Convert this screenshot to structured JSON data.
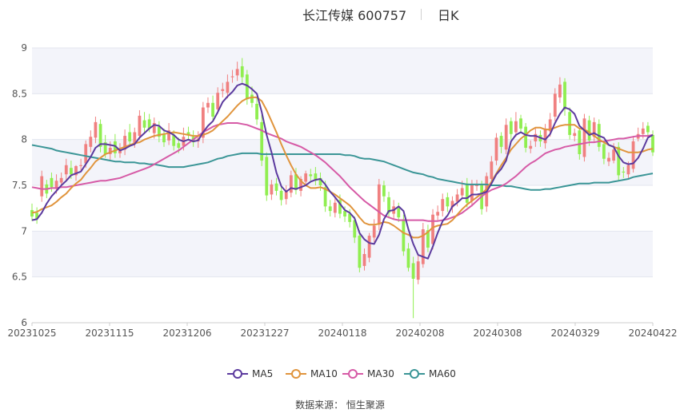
{
  "header": {
    "title": "长江传媒 600757",
    "period": "日K"
  },
  "source": "数据来源： 恒生聚源",
  "chart_data": {
    "type": "candlestick",
    "ylim": [
      6,
      9
    ],
    "yticks": [
      "9",
      "8.5",
      "8",
      "7.5",
      "7",
      "6.5",
      "6"
    ],
    "xticks": [
      "20231025",
      "20231115",
      "20231206",
      "20231227",
      "20240118",
      "20240208",
      "20240308",
      "20240329",
      "20240422"
    ],
    "up_color": "#f08080",
    "down_color": "#90ee50",
    "legend": [
      {
        "name": "MA5",
        "color": "#5b3a9e"
      },
      {
        "name": "MA10",
        "color": "#e0943c"
      },
      {
        "name": "MA30",
        "color": "#d65aa6"
      },
      {
        "name": "MA60",
        "color": "#3a9596"
      }
    ],
    "close": [
      7.16,
      7.13,
      7.6,
      7.41,
      7.48,
      7.55,
      7.58,
      7.72,
      7.62,
      7.71,
      7.72,
      7.95,
      8.03,
      8.19,
      7.92,
      7.84,
      7.91,
      7.85,
      7.88,
      8.04,
      7.98,
      8.08,
      8.26,
      8.13,
      8.12,
      8.18,
      8.03,
      7.97,
      8.1,
      7.93,
      7.91,
      8.03,
      8.05,
      7.97,
      8.01,
      8.35,
      8.4,
      8.25,
      8.51,
      8.55,
      8.63,
      8.69,
      8.77,
      8.68,
      8.44,
      8.4,
      8.22,
      7.77,
      7.39,
      7.51,
      7.44,
      7.34,
      7.44,
      7.61,
      7.45,
      7.57,
      7.63,
      7.6,
      7.55,
      7.5,
      7.27,
      7.22,
      7.31,
      7.19,
      7.16,
      7.1,
      6.93,
      6.6,
      6.75,
      6.95,
      7.06,
      7.51,
      7.38,
      7.2,
      7.27,
      7.15,
      6.78,
      6.6,
      6.48,
      6.67,
      7.02,
      6.82,
      7.18,
      7.21,
      7.35,
      7.27,
      7.33,
      7.4,
      7.47,
      7.31,
      7.51,
      7.5,
      7.24,
      7.6,
      7.76,
      8.02,
      7.92,
      8.16,
      8.06,
      8.2,
      8.12,
      7.91,
      7.93,
      8.06,
      7.98,
      8.12,
      8.22,
      8.5,
      8.6,
      8.33,
      8.05,
      8.07,
      7.84,
      8.23,
      7.99,
      8.19,
      7.92,
      7.79,
      7.8,
      7.89,
      7.61,
      7.64,
      7.72,
      7.98,
      8.06,
      8.12,
      8.08,
      7.86
    ],
    "open": [
      7.23,
      7.2,
      7.38,
      7.51,
      7.58,
      7.46,
      7.53,
      7.62,
      7.69,
      7.61,
      7.71,
      7.74,
      7.92,
      8.02,
      8.17,
      7.97,
      7.84,
      7.98,
      7.85,
      7.89,
      8.08,
      7.95,
      8.04,
      8.21,
      8.22,
      8.07,
      8.14,
      8.06,
      7.99,
      8.05,
      7.96,
      7.93,
      8.08,
      8.03,
      7.98,
      8.02,
      8.35,
      8.4,
      8.33,
      8.53,
      8.51,
      8.68,
      8.7,
      8.8,
      8.71,
      8.49,
      8.39,
      8.19,
      7.81,
      7.4,
      7.52,
      7.44,
      7.35,
      7.42,
      7.62,
      7.44,
      7.54,
      7.62,
      7.63,
      7.58,
      7.48,
      7.27,
      7.2,
      7.34,
      7.22,
      7.19,
      7.12,
      6.95,
      6.62,
      6.71,
      6.93,
      7.07,
      7.5,
      7.37,
      7.19,
      7.25,
      7.13,
      6.81,
      6.65,
      6.47,
      6.64,
      7.01,
      6.86,
      7.17,
      7.22,
      7.37,
      7.26,
      7.32,
      7.39,
      7.52,
      7.33,
      7.5,
      7.51,
      7.27,
      7.57,
      7.77,
      8.04,
      7.89,
      8.2,
      8.08,
      8.23,
      8.14,
      7.9,
      7.98,
      8.05,
      7.96,
      8.09,
      8.25,
      8.46,
      8.63,
      8.3,
      8.04,
      8.1,
      7.81,
      8.21,
      8.03,
      8.17,
      7.95,
      7.76,
      7.77,
      7.92,
      7.65,
      7.62,
      7.68,
      8.01,
      8.06,
      8.15,
      8.05
    ],
    "high": [
      7.3,
      7.26,
      7.66,
      7.56,
      7.64,
      7.62,
      7.64,
      7.79,
      7.77,
      7.72,
      7.79,
      7.99,
      8.1,
      8.25,
      8.22,
      8.05,
      7.98,
      8.06,
      7.96,
      8.11,
      8.17,
      8.13,
      8.32,
      8.3,
      8.28,
      8.24,
      8.2,
      8.12,
      8.18,
      8.1,
      8.02,
      8.13,
      8.14,
      8.1,
      8.09,
      8.41,
      8.46,
      8.48,
      8.57,
      8.62,
      8.71,
      8.76,
      8.85,
      8.89,
      8.76,
      8.58,
      8.46,
      8.27,
      7.86,
      7.56,
      7.58,
      7.5,
      7.5,
      7.66,
      7.69,
      7.6,
      7.66,
      7.68,
      7.7,
      7.64,
      7.55,
      7.34,
      7.38,
      7.4,
      7.27,
      7.24,
      7.16,
      7.01,
      6.81,
      6.98,
      7.13,
      7.57,
      7.55,
      7.43,
      7.34,
      7.31,
      7.18,
      6.87,
      6.72,
      6.75,
      7.09,
      7.07,
      7.24,
      7.28,
      7.41,
      7.42,
      7.38,
      7.46,
      7.55,
      7.58,
      7.56,
      7.56,
      7.55,
      7.64,
      7.82,
      8.07,
      8.08,
      8.23,
      8.24,
      8.3,
      8.27,
      8.18,
      7.99,
      8.12,
      8.1,
      8.17,
      8.29,
      8.56,
      8.68,
      8.67,
      8.35,
      8.12,
      8.13,
      8.28,
      8.26,
      8.24,
      8.22,
      7.98,
      7.86,
      7.96,
      7.97,
      7.7,
      7.76,
      8.04,
      8.13,
      8.19,
      8.19,
      8.1
    ],
    "low": [
      7.11,
      7.08,
      7.32,
      7.36,
      7.43,
      7.41,
      7.47,
      7.56,
      7.57,
      7.55,
      7.65,
      7.69,
      7.86,
      7.96,
      7.86,
      7.8,
      7.78,
      7.8,
      7.8,
      7.83,
      7.92,
      7.91,
      8.0,
      8.06,
      8.08,
      8.01,
      7.97,
      7.92,
      7.94,
      7.88,
      7.85,
      7.88,
      8.0,
      7.92,
      7.91,
      7.96,
      8.29,
      8.2,
      8.28,
      8.46,
      8.45,
      8.62,
      8.64,
      8.62,
      8.38,
      8.35,
      8.16,
      7.71,
      7.33,
      7.34,
      7.39,
      7.28,
      7.29,
      7.37,
      7.4,
      7.38,
      7.49,
      7.55,
      7.5,
      7.44,
      7.21,
      7.16,
      7.15,
      7.14,
      7.1,
      7.04,
      6.87,
      6.55,
      6.57,
      6.66,
      6.88,
      7.01,
      7.32,
      7.14,
      7.13,
      7.1,
      6.73,
      6.56,
      6.05,
      6.42,
      6.6,
      6.77,
      6.8,
      7.12,
      7.16,
      7.21,
      7.2,
      7.27,
      7.35,
      7.26,
      7.27,
      7.44,
      7.18,
      7.21,
      7.51,
      7.72,
      7.85,
      7.84,
      8.0,
      8.03,
      8.07,
      7.86,
      7.85,
      7.92,
      7.92,
      7.9,
      8.03,
      8.2,
      8.4,
      8.26,
      8.0,
      7.98,
      7.78,
      7.76,
      7.93,
      7.98,
      7.87,
      7.73,
      7.71,
      7.74,
      7.55,
      7.58,
      7.58,
      7.64,
      7.98,
      8.01,
      8.02,
      7.82
    ],
    "ma": {
      "MA5": [
        7.12,
        7.13,
        7.2,
        7.3,
        7.38,
        7.44,
        7.5,
        7.55,
        7.61,
        7.63,
        7.65,
        7.73,
        7.81,
        7.91,
        7.95,
        7.95,
        7.94,
        7.93,
        7.88,
        7.9,
        7.93,
        7.95,
        8.02,
        8.07,
        8.12,
        8.16,
        8.15,
        8.1,
        8.08,
        8.05,
        8.0,
        7.98,
        8.0,
        7.98,
        7.99,
        8.08,
        8.15,
        8.2,
        8.3,
        8.41,
        8.47,
        8.52,
        8.59,
        8.61,
        8.59,
        8.55,
        8.5,
        8.3,
        8.05,
        7.86,
        7.64,
        7.49,
        7.43,
        7.47,
        7.46,
        7.48,
        7.5,
        7.54,
        7.56,
        7.57,
        7.51,
        7.43,
        7.37,
        7.3,
        7.23,
        7.2,
        7.14,
        6.98,
        6.91,
        6.87,
        6.86,
        6.96,
        7.13,
        7.22,
        7.23,
        7.27,
        7.22,
        7.02,
        6.86,
        6.74,
        6.72,
        6.7,
        6.83,
        6.98,
        7.11,
        7.17,
        7.27,
        7.31,
        7.36,
        7.36,
        7.4,
        7.4,
        7.41,
        7.43,
        7.52,
        7.62,
        7.68,
        7.77,
        7.98,
        8.05,
        8.08,
        8.05,
        8.04,
        8.04,
        8.02,
        8.0,
        8.06,
        8.18,
        8.28,
        8.35,
        8.33,
        8.28,
        8.15,
        8.1,
        8.05,
        8.07,
        8.04,
        8.02,
        7.94,
        7.92,
        7.82,
        7.75,
        7.73,
        7.74,
        7.8,
        7.9,
        8.02,
        8.05
      ],
      "MA10": [
        7.2,
        7.21,
        7.24,
        7.26,
        7.28,
        7.32,
        7.37,
        7.41,
        7.47,
        7.52,
        7.56,
        7.63,
        7.69,
        7.76,
        7.8,
        7.84,
        7.86,
        7.88,
        7.9,
        7.92,
        7.94,
        7.96,
        7.97,
        8.0,
        8.02,
        8.04,
        8.05,
        8.06,
        8.07,
        8.08,
        8.07,
        8.06,
        8.05,
        8.04,
        8.04,
        8.05,
        8.07,
        8.1,
        8.15,
        8.2,
        8.25,
        8.31,
        8.37,
        8.42,
        8.45,
        8.46,
        8.46,
        8.42,
        8.32,
        8.2,
        8.08,
        7.95,
        7.83,
        7.72,
        7.62,
        7.55,
        7.5,
        7.47,
        7.47,
        7.48,
        7.46,
        7.43,
        7.4,
        7.36,
        7.32,
        7.28,
        7.22,
        7.15,
        7.09,
        7.07,
        7.07,
        7.08,
        7.1,
        7.09,
        7.06,
        7.02,
        6.98,
        6.96,
        6.93,
        6.93,
        6.95,
        6.99,
        7.04,
        7.06,
        7.07,
        7.08,
        7.12,
        7.18,
        7.24,
        7.29,
        7.33,
        7.37,
        7.41,
        7.46,
        7.54,
        7.63,
        7.72,
        7.8,
        7.89,
        7.95,
        8.01,
        8.05,
        8.1,
        8.13,
        8.13,
        8.11,
        8.11,
        8.13,
        8.15,
        8.16,
        8.16,
        8.16,
        8.12,
        8.11,
        8.08,
        8.04,
        8.0,
        7.97,
        7.94,
        7.92,
        7.9,
        7.88,
        7.86,
        7.86,
        7.86,
        7.87,
        7.89,
        7.9
      ],
      "MA30": [
        7.48,
        7.47,
        7.46,
        7.46,
        7.47,
        7.47,
        7.48,
        7.48,
        7.49,
        7.5,
        7.51,
        7.52,
        7.53,
        7.54,
        7.55,
        7.55,
        7.56,
        7.57,
        7.58,
        7.6,
        7.62,
        7.64,
        7.66,
        7.68,
        7.7,
        7.73,
        7.76,
        7.79,
        7.82,
        7.85,
        7.88,
        7.92,
        7.96,
        8.0,
        8.04,
        8.08,
        8.11,
        8.14,
        8.16,
        8.17,
        8.18,
        8.18,
        8.18,
        8.17,
        8.16,
        8.14,
        8.12,
        8.1,
        8.07,
        8.05,
        8.03,
        8.01,
        7.98,
        7.96,
        7.94,
        7.92,
        7.89,
        7.86,
        7.83,
        7.79,
        7.75,
        7.7,
        7.65,
        7.6,
        7.54,
        7.48,
        7.43,
        7.38,
        7.33,
        7.29,
        7.25,
        7.21,
        7.17,
        7.15,
        7.13,
        7.12,
        7.12,
        7.12,
        7.12,
        7.12,
        7.12,
        7.11,
        7.11,
        7.11,
        7.12,
        7.13,
        7.15,
        7.17,
        7.2,
        7.24,
        7.28,
        7.33,
        7.38,
        7.42,
        7.45,
        7.47,
        7.49,
        7.52,
        7.56,
        7.6,
        7.65,
        7.7,
        7.74,
        7.77,
        7.81,
        7.85,
        7.87,
        7.89,
        7.9,
        7.92,
        7.93,
        7.94,
        7.95,
        7.96,
        7.97,
        7.97,
        7.98,
        7.98,
        7.99,
        8.0,
        8.01,
        8.01,
        8.02,
        8.03,
        8.04,
        8.04,
        8.04,
        8.05
      ],
      "MA60": [
        7.94,
        7.93,
        7.92,
        7.91,
        7.9,
        7.88,
        7.87,
        7.86,
        7.85,
        7.84,
        7.83,
        7.82,
        7.81,
        7.8,
        7.79,
        7.78,
        7.77,
        7.76,
        7.76,
        7.75,
        7.75,
        7.75,
        7.74,
        7.74,
        7.73,
        7.73,
        7.72,
        7.71,
        7.7,
        7.7,
        7.7,
        7.7,
        7.71,
        7.72,
        7.73,
        7.74,
        7.75,
        7.77,
        7.79,
        7.8,
        7.82,
        7.83,
        7.84,
        7.85,
        7.85,
        7.85,
        7.85,
        7.84,
        7.84,
        7.84,
        7.84,
        7.84,
        7.84,
        7.84,
        7.84,
        7.84,
        7.84,
        7.84,
        7.84,
        7.84,
        7.84,
        7.84,
        7.84,
        7.84,
        7.83,
        7.83,
        7.82,
        7.8,
        7.79,
        7.79,
        7.78,
        7.77,
        7.76,
        7.74,
        7.72,
        7.7,
        7.68,
        7.66,
        7.64,
        7.63,
        7.62,
        7.6,
        7.59,
        7.57,
        7.56,
        7.55,
        7.54,
        7.53,
        7.52,
        7.51,
        7.51,
        7.51,
        7.51,
        7.51,
        7.5,
        7.5,
        7.5,
        7.49,
        7.49,
        7.48,
        7.47,
        7.46,
        7.45,
        7.45,
        7.45,
        7.46,
        7.46,
        7.47,
        7.48,
        7.49,
        7.5,
        7.51,
        7.52,
        7.52,
        7.52,
        7.53,
        7.53,
        7.53,
        7.53,
        7.54,
        7.55,
        7.56,
        7.57,
        7.59,
        7.6,
        7.61,
        7.62,
        7.63
      ]
    }
  }
}
